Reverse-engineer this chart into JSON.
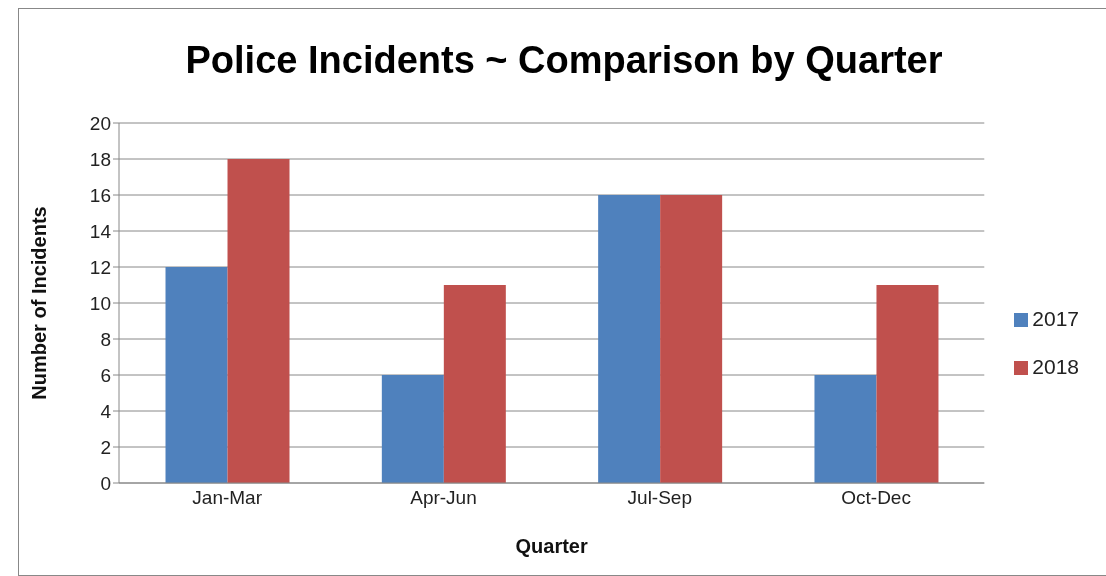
{
  "chart_data": {
    "type": "bar",
    "title": "Police Incidents ~ Comparison by Quarter",
    "xlabel": "Quarter",
    "ylabel": "Number of Incidents",
    "categories": [
      "Jan-Mar",
      "Apr-Jun",
      "Jul-Sep",
      "Oct-Dec"
    ],
    "series": [
      {
        "name": "2017",
        "color": "#4f81bd",
        "values": [
          12,
          6,
          16,
          6
        ]
      },
      {
        "name": "2018",
        "color": "#c0504d",
        "values": [
          18,
          11,
          16,
          11
        ]
      }
    ],
    "ylim": [
      0,
      20
    ],
    "yticks": [
      0,
      2,
      4,
      6,
      8,
      10,
      12,
      14,
      16,
      18,
      20
    ],
    "grid": "y",
    "legend": "right"
  }
}
